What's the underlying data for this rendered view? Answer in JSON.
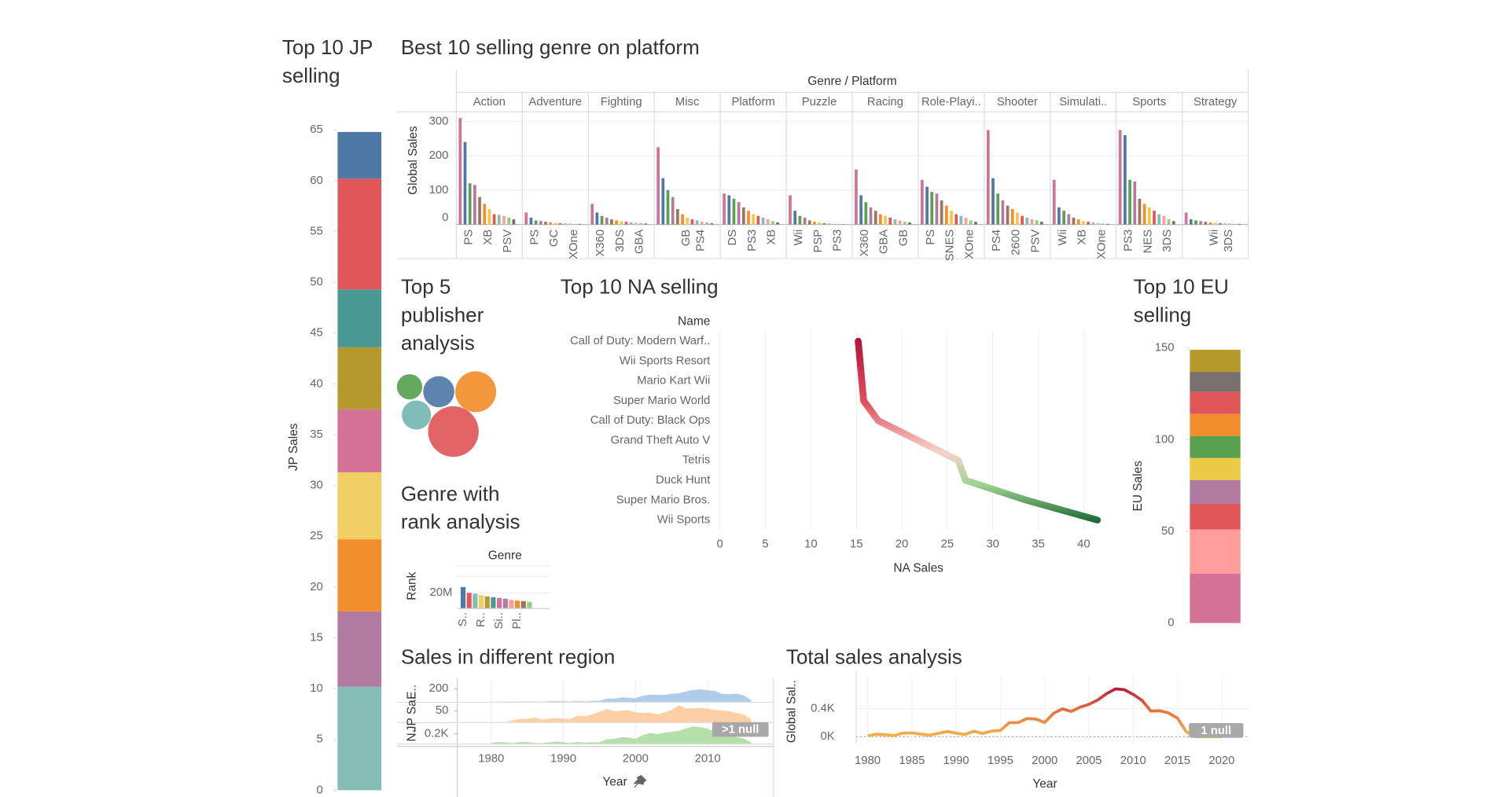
{
  "chart_data": [
    {
      "type": "stacked-bar",
      "title": "Top 10 JP selling",
      "y_label": "JP Sales",
      "ylim": [
        0,
        66.5
      ],
      "yticks": [
        0,
        5,
        10,
        15,
        20,
        25,
        30,
        35,
        40,
        45,
        50,
        55,
        60,
        65
      ],
      "series": [
        {
          "color": "#86bcb6",
          "values": [
            10.2
          ]
        },
        {
          "color": "#b07aa1",
          "values": [
            7.4
          ]
        },
        {
          "color": "#f28e2b",
          "values": [
            7.1
          ]
        },
        {
          "color": "#f1ce63",
          "values": [
            6.6
          ]
        },
        {
          "color": "#d37295",
          "values": [
            6.2
          ]
        },
        {
          "color": "#b6992d",
          "values": [
            6.1
          ]
        },
        {
          "color": "#499894",
          "values": [
            5.7
          ]
        },
        {
          "color": "#e15759",
          "values": [
            10.9
          ]
        },
        {
          "color": "#4e79a7",
          "values": [
            4.6
          ]
        }
      ]
    },
    {
      "type": "faceted-bar",
      "title": "Best 10 selling genre on platform",
      "header": "Genre / Platform",
      "y_label": "Global Sales",
      "ylim": [
        0,
        328
      ],
      "yticks": [
        0,
        100,
        200,
        300
      ],
      "grid": true,
      "palette": [
        "#d37295",
        "#4e79a7",
        "#59a14f",
        "#b07aa1",
        "#9c755f",
        "#f28e2b",
        "#edc948",
        "#e15759",
        "#86bcb6",
        "#ff9d9a",
        "#8cd17d",
        "#79706e"
      ],
      "facets": [
        {
          "name": "Action",
          "categories": [
            null,
            "PS",
            null,
            null,
            null,
            "XB",
            null,
            null,
            null,
            "PSV",
            null,
            null
          ],
          "values": [
            310,
            240,
            120,
            115,
            80,
            60,
            45,
            30,
            28,
            25,
            20,
            15
          ]
        },
        {
          "name": "Adventure",
          "categories": [
            null,
            "PS",
            null,
            null,
            null,
            "GC",
            null,
            null,
            null,
            "XOne",
            null,
            null
          ],
          "values": [
            35,
            20,
            12,
            10,
            8,
            6,
            5,
            4,
            3,
            3,
            2,
            2
          ]
        },
        {
          "name": "Fighting",
          "categories": [
            null,
            "X360",
            null,
            null,
            null,
            "3DS",
            null,
            null,
            null,
            "GBA",
            null,
            null
          ],
          "values": [
            60,
            35,
            25,
            20,
            15,
            12,
            10,
            8,
            6,
            5,
            4,
            3
          ]
        },
        {
          "name": "Misc",
          "categories": [
            null,
            null,
            null,
            null,
            null,
            "GB",
            null,
            null,
            "PS4",
            null,
            null,
            null
          ],
          "values": [
            225,
            135,
            100,
            80,
            45,
            30,
            20,
            15,
            12,
            8,
            6,
            4
          ]
        },
        {
          "name": "Platform",
          "categories": [
            null,
            "DS",
            null,
            null,
            null,
            "PS3",
            null,
            null,
            null,
            "XB",
            null,
            null
          ],
          "values": [
            90,
            85,
            75,
            65,
            50,
            40,
            30,
            25,
            20,
            15,
            10,
            6
          ]
        },
        {
          "name": "Puzzle",
          "categories": [
            null,
            "Wii",
            null,
            null,
            null,
            "PSP",
            null,
            null,
            null,
            "PS3",
            null,
            null
          ],
          "values": [
            85,
            40,
            25,
            20,
            12,
            8,
            6,
            4,
            3,
            2,
            2,
            1
          ]
        },
        {
          "name": "Racing",
          "categories": [
            null,
            "X360",
            null,
            null,
            null,
            "GBA",
            null,
            null,
            null,
            "GB",
            null,
            null
          ],
          "values": [
            160,
            85,
            65,
            50,
            40,
            30,
            25,
            20,
            15,
            12,
            8,
            6
          ]
        },
        {
          "name": "Role-Playi..",
          "categories": [
            null,
            "PS",
            null,
            null,
            null,
            "SNES",
            null,
            null,
            null,
            "XOne",
            null,
            null
          ],
          "values": [
            130,
            110,
            95,
            90,
            70,
            55,
            40,
            30,
            25,
            20,
            12,
            8
          ]
        },
        {
          "name": "Shooter",
          "categories": [
            null,
            "PS4",
            null,
            null,
            null,
            "2600",
            null,
            null,
            null,
            "PSV",
            null,
            null
          ],
          "values": [
            275,
            135,
            90,
            70,
            55,
            45,
            35,
            25,
            20,
            15,
            12,
            8
          ]
        },
        {
          "name": "Simulati..",
          "categories": [
            null,
            "Wii",
            null,
            null,
            null,
            "XB",
            null,
            null,
            null,
            "XOne",
            null,
            null
          ],
          "values": [
            130,
            50,
            40,
            30,
            20,
            15,
            10,
            8,
            6,
            4,
            3,
            2
          ]
        },
        {
          "name": "Sports",
          "categories": [
            null,
            "PS3",
            null,
            null,
            null,
            "NES",
            null,
            null,
            null,
            "3DS",
            null,
            null
          ],
          "values": [
            275,
            260,
            130,
            125,
            75,
            60,
            50,
            40,
            30,
            25,
            15,
            10
          ]
        },
        {
          "name": "Strategy",
          "categories": [
            null,
            null,
            null,
            null,
            null,
            "Wii",
            null,
            null,
            "3DS",
            null,
            null,
            null
          ],
          "values": [
            35,
            15,
            12,
            10,
            8,
            6,
            5,
            4,
            3,
            3,
            2,
            2
          ]
        }
      ]
    },
    {
      "type": "bubble",
      "title": "Top 5 publisher analysis",
      "colors": [
        "#59a14f",
        "#4e79a7",
        "#f28e2b",
        "#76b7b2",
        "#e15759"
      ],
      "values": [
        169,
        256,
        441,
        225,
        676
      ]
    },
    {
      "type": "bar",
      "title": "Genre with rank analysis",
      "header": "Genre",
      "y_label": "Rank",
      "ylim": [
        0,
        35000000
      ],
      "yticks": [
        {
          "value": 20000000,
          "label": "20M"
        }
      ],
      "grid": true,
      "categories": [
        "S..",
        null,
        null,
        "R..",
        null,
        null,
        "Si..",
        null,
        null,
        "Pl..",
        null,
        null
      ],
      "values": [
        27500000,
        20000000,
        19000000,
        17000000,
        15500000,
        14500000,
        13500000,
        12500000,
        11000000,
        10000000,
        9500000,
        8500000
      ],
      "colors": [
        "#4e79a7",
        "#e15759",
        "#86bcb6",
        "#f1ce63",
        "#b6992d",
        "#499894",
        "#d37295",
        "#b07aa1",
        "#ff9d9a",
        "#f28e2b",
        "#9c755f",
        "#8cd17d"
      ]
    },
    {
      "type": "line",
      "title": "Top 10 NA selling",
      "header": "Name",
      "x_label": "NA Sales",
      "categories": [
        "Call of Duty: Modern Warf..",
        "Wii Sports Resort",
        "Mario Kart Wii",
        "Super Mario World",
        "Call of Duty: Black Ops",
        "Grand Theft Auto V",
        "Tetris",
        "Duck Hunt",
        "Super Mario Bros.",
        "Wii Sports"
      ],
      "values": [
        15.2,
        15.4,
        15.6,
        15.8,
        17.4,
        21.8,
        26.2,
        27.0,
        33.7,
        41.5
      ],
      "xlim": [
        0,
        43
      ],
      "xticks": [
        0,
        5,
        10,
        15,
        20,
        25,
        30,
        35,
        40
      ],
      "grid": true,
      "colors": [
        "#b5163b",
        "#e0525d",
        "#f7d2cc",
        "#9fd38f",
        "#1e6b34"
      ]
    },
    {
      "type": "stacked-bar",
      "title": "Top 10 EU selling",
      "y_label": "EU Sales",
      "ylim": [
        0,
        155
      ],
      "yticks": [
        0,
        50,
        100,
        150
      ],
      "series": [
        {
          "color": "#d37295",
          "values": [
            27
          ]
        },
        {
          "color": "#ff9d9a",
          "values": [
            24
          ]
        },
        {
          "color": "#e15759",
          "values": [
            14
          ]
        },
        {
          "color": "#b07aa1",
          "values": [
            13
          ]
        },
        {
          "color": "#edc948",
          "values": [
            12
          ]
        },
        {
          "color": "#59a14f",
          "values": [
            12
          ]
        },
        {
          "color": "#f28e2b",
          "values": [
            12
          ]
        },
        {
          "color": "#e15759",
          "values": [
            12
          ]
        },
        {
          "color": "#79706e",
          "values": [
            11
          ]
        },
        {
          "color": "#b6992d",
          "values": [
            12
          ]
        }
      ]
    },
    {
      "type": "area-panels",
      "title": "Sales in different region",
      "x_label": "Year",
      "annotation": ">1 null",
      "x": [
        1980,
        1981,
        1982,
        1983,
        1984,
        1985,
        1986,
        1987,
        1988,
        1989,
        1990,
        1991,
        1992,
        1993,
        1994,
        1995,
        1996,
        1997,
        1998,
        1999,
        2000,
        2001,
        2002,
        2003,
        2004,
        2005,
        2006,
        2007,
        2008,
        2009,
        2010,
        2011,
        2012,
        2013,
        2014,
        2015,
        2016
      ],
      "xlim": [
        1975.3,
        2019.1
      ],
      "xticks": [
        1980,
        1990,
        2000,
        2010
      ],
      "series": [
        {
          "name": "E..",
          "color": "#a0c4e8",
          "ylim": [
            0,
            300
          ],
          "yticks": [
            200
          ],
          "values": [
            0.7,
            1.96,
            1.65,
            0.8,
            2.1,
            4.74,
            2.84,
            1.41,
            6.59,
            8.44,
            7.63,
            3.95,
            11.71,
            4.65,
            14.88,
            14.9,
            47.26,
            48.32,
            66.9,
            62.67,
            52.75,
            94.89,
            109.74,
            103.81,
            107.27,
            121.56,
            129.24,
            160.18,
            184.4,
            191.59,
            176.57,
            167.44,
            118.78,
            118.42,
            125.65,
            97.71,
            26.76
          ]
        },
        {
          "name": "JP Sa..",
          "color": "#fbc894",
          "ylim": [
            0,
            85
          ],
          "yticks": [
            50
          ],
          "values": [
            0,
            0,
            0,
            8.1,
            14.27,
            14.56,
            19.81,
            11.63,
            15.76,
            18.36,
            14.88,
            14.78,
            28.91,
            25.33,
            33.99,
            45.75,
            57.44,
            48.87,
            50.04,
            52.34,
            42.77,
            39.86,
            41.76,
            34.2,
            41.65,
            54.28,
            73.73,
            60.29,
            60.26,
            61.89,
            59.49,
            53.04,
            51.8,
            47.59,
            39.46,
            33.72,
            13.7
          ]
        },
        {
          "name": "N..",
          "color": "#a6d99a",
          "ylim": [
            0,
            400
          ],
          "yticks": [
            {
              "value": 200,
              "label": "0.2K"
            }
          ],
          "values": [
            10.59,
            33.4,
            26.92,
            7.76,
            33.28,
            33.73,
            12.5,
            8.46,
            23.87,
            45.15,
            25.46,
            12.76,
            33.87,
            15.12,
            28.15,
            24.82,
            86.76,
            94.75,
            128.36,
            126.06,
            94.49,
            173.98,
            216.19,
            193.59,
            222.59,
            242.61,
            263.12,
            311.18,
            351.44,
            338.85,
            304.24,
            241.06,
            154.96,
            154.77,
            131.97,
            102.82,
            22.66
          ]
        }
      ]
    },
    {
      "type": "line",
      "title": "Total sales analysis",
      "x_label": "Year",
      "y_label": "Global Sal..",
      "annotation": "1 null",
      "x": [
        1980,
        1981,
        1982,
        1983,
        1984,
        1985,
        1986,
        1987,
        1988,
        1989,
        1990,
        1991,
        1992,
        1993,
        1994,
        1995,
        1996,
        1997,
        1998,
        1999,
        2000,
        2001,
        2002,
        2003,
        2004,
        2005,
        2006,
        2007,
        2008,
        2009,
        2010,
        2011,
        2012,
        2013,
        2014,
        2015,
        2016,
        2017,
        2020
      ],
      "values": [
        11.38,
        35.77,
        28.86,
        16.79,
        50.36,
        53.94,
        37.07,
        21.74,
        47.22,
        73.45,
        49.39,
        32.23,
        76.16,
        45.98,
        79.17,
        88.11,
        199.15,
        201.07,
        256.47,
        251.27,
        201.56,
        331.47,
        395.52,
        357.85,
        419.31,
        459.94,
        521.04,
        611.13,
        678.9,
        667.3,
        600.45,
        515.99,
        363.54,
        368.11,
        337.05,
        264.44,
        70.93,
        0.05,
        0.29
      ],
      "xlim": [
        1978.7,
        2023
      ],
      "xticks": [
        1980,
        1985,
        1990,
        1995,
        2000,
        2005,
        2010,
        2015,
        2020
      ],
      "ylim": [
        -97,
        869
      ],
      "yticks": [
        {
          "value": 0,
          "label": "0K"
        },
        {
          "value": 400,
          "label": "0.4K"
        }
      ],
      "grid": true,
      "colors": [
        "#f2b447",
        "#e8743b",
        "#b5163b"
      ]
    }
  ]
}
